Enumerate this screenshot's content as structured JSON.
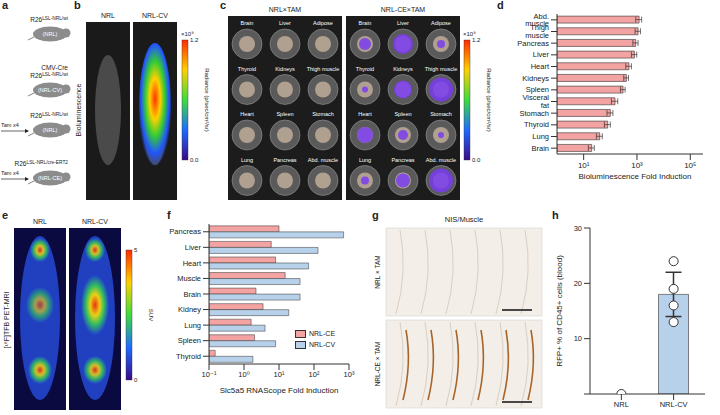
{
  "panel_letters": [
    "a",
    "b",
    "c",
    "d",
    "e",
    "f",
    "g",
    "h"
  ],
  "image_panels": {
    "a": {
      "mice": [
        {
          "gene": "R26",
          "allele": "LSL-NRL/wt",
          "label": "(NRL)"
        },
        {
          "driver": "CMV-Cre",
          "gene": "R26",
          "allele": "LSL-NRL/wt",
          "label": "(NRL-CV)"
        },
        {
          "treatment": "Tam x4",
          "gene": "R26",
          "allele": "LSL-NRL/wt",
          "label": "(NRL)"
        },
        {
          "treatment": "Tam x4",
          "gene": "R26",
          "allele": "LSL-NRL/cre-ERT2",
          "label": "(NRL-CE)"
        }
      ]
    },
    "b": {
      "y_label": "Bioluminescence",
      "images": [
        "NRL",
        "NRL-CV"
      ],
      "colorbar": {
        "range": [
          0,
          1.2
        ],
        "ticks": [
          {
            "value": 0,
            "label": "0.0"
          },
          {
            "value": 1.2,
            "label": "1.2"
          }
        ],
        "multiplier": "×10⁹",
        "title": "Radiance (p/sec/cm²/sr)"
      }
    },
    "c": {
      "plates": [
        "NRL×TAM",
        "NRL-CE×TAM"
      ],
      "wells": [
        [
          "Brain",
          "Liver",
          "Adipose"
        ],
        [
          "Thyroid",
          "Kidneys",
          "Thigh muscle"
        ],
        [
          "Heart",
          "Spleen",
          "Stomach"
        ],
        [
          "Lung",
          "Pancreas",
          "Abd. muscle"
        ]
      ],
      "colorbar": {
        "range": [
          0,
          1.2
        ],
        "ticks": [
          {
            "value": 0,
            "label": "0.0"
          },
          {
            "value": 1.2,
            "label": "1.2"
          }
        ],
        "multiplier": "×10⁹",
        "title": "Radiance (p/sec/cm²/sr)"
      }
    },
    "e": {
      "y_label": "[¹⁸F]TFB PET-MRI",
      "images": [
        "NRL",
        "NRL-CV"
      ],
      "colorbar": {
        "range": [
          0,
          5
        ],
        "ticks": [
          0,
          5
        ],
        "title": "SUV"
      }
    },
    "g": {
      "title": "NIS/Muscle",
      "images": [
        "NRL × TAM",
        "NRL-CE × TAM"
      ]
    }
  },
  "chart_data": [
    {
      "type": "bar",
      "orientation": "horizontal",
      "log": "x",
      "categories": [
        "Abd. muscle",
        "Thigh muscle",
        "Pancreas",
        "Liver",
        "Heart",
        "Kidneys",
        "Spleen",
        "Visceral fat",
        "Stomach",
        "Thyroid",
        "Lung",
        "Brain"
      ],
      "values": [
        1200,
        1100,
        900,
        800,
        500,
        400,
        300,
        150,
        100,
        80,
        40,
        20
      ],
      "errors": [
        300,
        250,
        200,
        180,
        120,
        80,
        60,
        40,
        25,
        20,
        10,
        5
      ],
      "color": "#f4a3a3",
      "xlim": [
        1,
        300000
      ],
      "xticks": [
        {
          "value": 10,
          "label": "10¹"
        },
        {
          "value": 1000,
          "label": "10³"
        },
        {
          "value": 100000,
          "label": "10⁵"
        }
      ],
      "x_label": "Bioluminescence Fold Induction"
    },
    {
      "type": "bar",
      "orientation": "horizontal",
      "log": "x",
      "categories": [
        "Pancreas",
        "Liver",
        "Heart",
        "Muscle",
        "Brain",
        "Kidney",
        "Lung",
        "Spleen",
        "Thyroid"
      ],
      "series": [
        {
          "name": "NRL-CE",
          "color": "#f4a3a3",
          "values": [
            10,
            6,
            8,
            15,
            2.2,
            3.5,
            1.6,
            2,
            0.15
          ]
        },
        {
          "name": "NRL-CV",
          "color": "#b8d1ea",
          "values": [
            700,
            130,
            70,
            40,
            40,
            19,
            4,
            8,
            1.8
          ]
        }
      ],
      "xlim": [
        0.1,
        1000
      ],
      "xticks": [
        {
          "value": 0.1,
          "label": "10⁻¹"
        },
        {
          "value": 1,
          "label": "10⁰"
        },
        {
          "value": 10,
          "label": "10¹"
        },
        {
          "value": 100,
          "label": "10²"
        },
        {
          "value": 1000,
          "label": "10³"
        }
      ],
      "x_label": "Slc5a5 RNAScope Fold Induction",
      "legend": "lower right"
    },
    {
      "type": "bar",
      "categories": [
        "NRL",
        "NRL-CV"
      ],
      "values": [
        0,
        18
      ],
      "errors": [
        0,
        4
      ],
      "points": [
        [
          0
        ],
        [
          13,
          16,
          19,
          24
        ]
      ],
      "color": "#b8d1ea",
      "ylim": [
        0,
        30
      ],
      "yticks": [
        0,
        10,
        20,
        30
      ],
      "y_label": "RFP+ % of CD45+ cells (blood)"
    }
  ]
}
